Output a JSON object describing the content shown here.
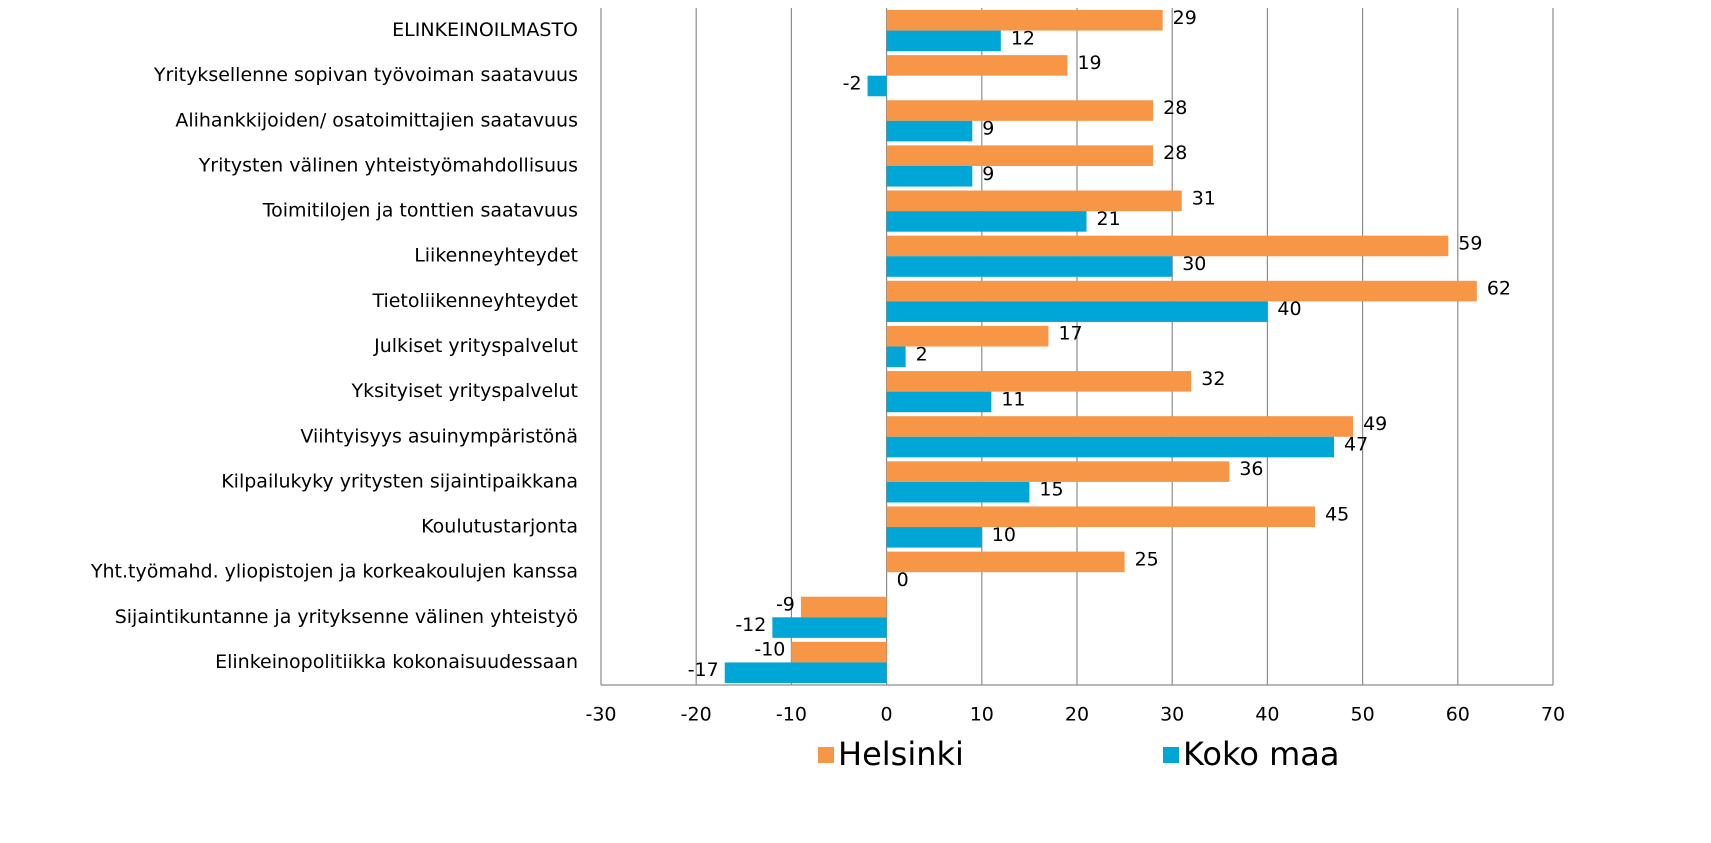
{
  "chart_data": {
    "type": "bar",
    "orientation": "horizontal",
    "categories": [
      "ELINKEINOILMASTO",
      "Yrityksellenne sopivan työvoiman saatavuus",
      "Alihankkijoiden/ osatoimittajien saatavuus",
      "Yritysten välinen yhteistyömahdollisuus",
      "Toimitilojen ja tonttien saatavuus",
      "Liikenneyhteydet",
      "Tietoliikenneyhteydet",
      "Julkiset yrityspalvelut",
      "Yksityiset yrityspalvelut",
      "Viihtyisyys asuinympäristönä",
      "Kilpailukyky yritysten sijaintipaikkana",
      "Koulutustarjonta",
      "Yht.työmahd. yliopistojen ja korkeakoulujen kanssa",
      "Sijaintikuntanne ja yrityksenne välinen yhteistyö",
      "Elinkeinopolitiikka kokonaisuudessaan"
    ],
    "series": [
      {
        "name": "Helsinki",
        "color": "#f79646",
        "values": [
          29,
          19,
          28,
          28,
          31,
          59,
          62,
          17,
          32,
          49,
          36,
          45,
          25,
          -9,
          -10
        ]
      },
      {
        "name": "Koko maa",
        "color": "#00a6d6",
        "values": [
          12,
          -2,
          9,
          9,
          21,
          30,
          40,
          2,
          11,
          47,
          15,
          10,
          0,
          -12,
          -17
        ]
      }
    ],
    "xlim": [
      -30,
      70
    ],
    "xticks": [
      -30,
      -20,
      -10,
      0,
      10,
      20,
      30,
      40,
      50,
      60,
      70
    ],
    "grid": true,
    "legend": "bottom"
  }
}
